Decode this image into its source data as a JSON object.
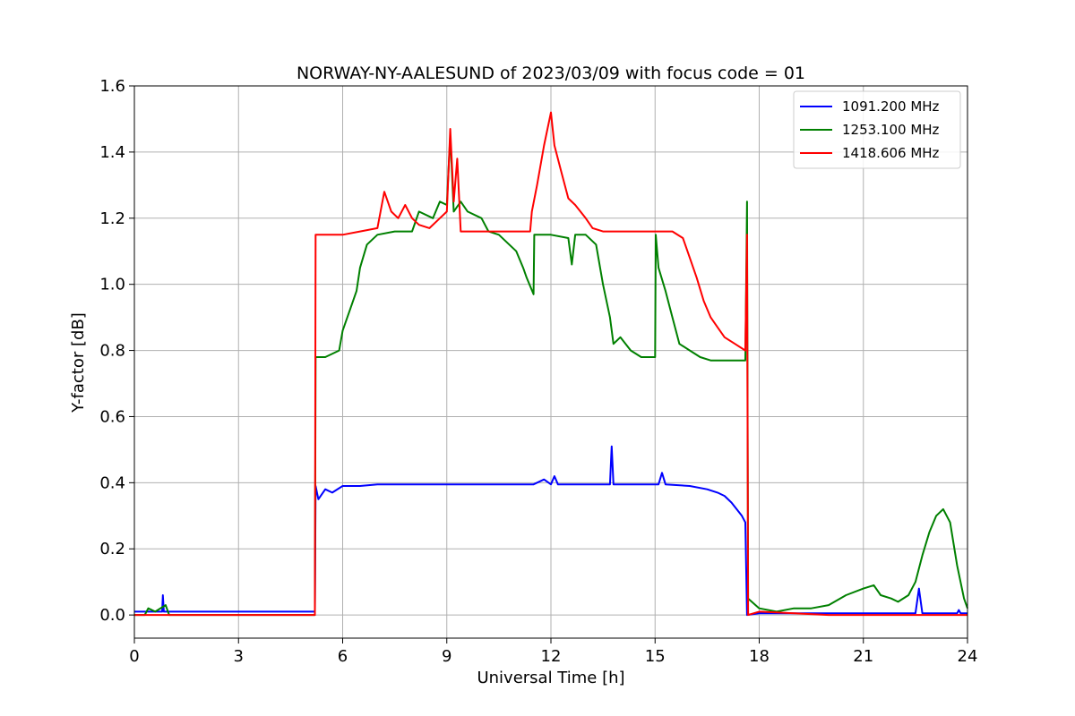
{
  "chart_data": {
    "type": "line",
    "title": "NORWAY-NY-AALESUND of 2023/03/09 with focus code = 01",
    "xlabel": "Universal Time [h]",
    "ylabel": "Y-factor [dB]",
    "xlim": [
      0,
      24
    ],
    "ylim": [
      -0.07,
      1.6
    ],
    "xticks": [
      0,
      3,
      6,
      9,
      12,
      15,
      18,
      21,
      24
    ],
    "yticks": [
      0.0,
      0.2,
      0.4,
      0.6,
      0.8,
      1.0,
      1.2,
      1.4,
      1.6
    ],
    "xtick_labels": [
      "0",
      "3",
      "6",
      "9",
      "12",
      "15",
      "18",
      "21",
      "24"
    ],
    "ytick_labels": [
      "0.0",
      "0.2",
      "0.4",
      "0.6",
      "0.8",
      "1.0",
      "1.2",
      "1.4",
      "1.6"
    ],
    "grid": true,
    "legend_position": "top-right",
    "series": [
      {
        "name": "1091.200 MHz",
        "color": "#0000ff",
        "points": [
          [
            0,
            0.01
          ],
          [
            0.8,
            0.01
          ],
          [
            0.82,
            0.06
          ],
          [
            0.85,
            0.01
          ],
          [
            5.2,
            0.01
          ],
          [
            5.22,
            0.39
          ],
          [
            5.3,
            0.35
          ],
          [
            5.5,
            0.38
          ],
          [
            5.7,
            0.37
          ],
          [
            6.0,
            0.39
          ],
          [
            6.5,
            0.39
          ],
          [
            7.0,
            0.395
          ],
          [
            9.0,
            0.395
          ],
          [
            11.5,
            0.395
          ],
          [
            11.8,
            0.41
          ],
          [
            12.0,
            0.395
          ],
          [
            12.1,
            0.42
          ],
          [
            12.2,
            0.395
          ],
          [
            13.7,
            0.395
          ],
          [
            13.75,
            0.51
          ],
          [
            13.8,
            0.395
          ],
          [
            15.1,
            0.395
          ],
          [
            15.2,
            0.43
          ],
          [
            15.3,
            0.395
          ],
          [
            16.0,
            0.39
          ],
          [
            16.5,
            0.38
          ],
          [
            16.8,
            0.37
          ],
          [
            17.0,
            0.36
          ],
          [
            17.2,
            0.34
          ],
          [
            17.35,
            0.32
          ],
          [
            17.5,
            0.3
          ],
          [
            17.6,
            0.28
          ],
          [
            17.65,
            0.0
          ],
          [
            18.0,
            0.005
          ],
          [
            19.0,
            0.005
          ],
          [
            20.0,
            0.005
          ],
          [
            22.5,
            0.005
          ],
          [
            22.6,
            0.08
          ],
          [
            22.7,
            0.005
          ],
          [
            23.7,
            0.005
          ],
          [
            23.75,
            0.015
          ],
          [
            23.8,
            0.005
          ],
          [
            24.0,
            0.005
          ]
        ]
      },
      {
        "name": "1253.100 MHz",
        "color": "#008000",
        "points": [
          [
            0,
            0.0
          ],
          [
            0.3,
            0.0
          ],
          [
            0.4,
            0.02
          ],
          [
            0.6,
            0.01
          ],
          [
            0.9,
            0.03
          ],
          [
            1.0,
            0.0
          ],
          [
            5.2,
            0.0
          ],
          [
            5.22,
            0.78
          ],
          [
            5.5,
            0.78
          ],
          [
            5.9,
            0.8
          ],
          [
            6.0,
            0.86
          ],
          [
            6.2,
            0.92
          ],
          [
            6.4,
            0.98
          ],
          [
            6.5,
            1.05
          ],
          [
            6.7,
            1.12
          ],
          [
            7.0,
            1.15
          ],
          [
            7.5,
            1.16
          ],
          [
            8.0,
            1.16
          ],
          [
            8.2,
            1.22
          ],
          [
            8.6,
            1.2
          ],
          [
            8.8,
            1.25
          ],
          [
            9.0,
            1.24
          ],
          [
            9.1,
            1.45
          ],
          [
            9.2,
            1.22
          ],
          [
            9.4,
            1.25
          ],
          [
            9.6,
            1.22
          ],
          [
            10.0,
            1.2
          ],
          [
            10.2,
            1.16
          ],
          [
            10.5,
            1.15
          ],
          [
            10.8,
            1.12
          ],
          [
            11.0,
            1.1
          ],
          [
            11.2,
            1.05
          ],
          [
            11.3,
            1.02
          ],
          [
            11.5,
            0.97
          ],
          [
            11.52,
            1.15
          ],
          [
            12.0,
            1.15
          ],
          [
            12.5,
            1.14
          ],
          [
            12.6,
            1.06
          ],
          [
            12.7,
            1.15
          ],
          [
            13.0,
            1.15
          ],
          [
            13.3,
            1.12
          ],
          [
            13.5,
            1.0
          ],
          [
            13.7,
            0.9
          ],
          [
            13.8,
            0.82
          ],
          [
            14.0,
            0.84
          ],
          [
            14.3,
            0.8
          ],
          [
            14.6,
            0.78
          ],
          [
            14.9,
            0.78
          ],
          [
            15.0,
            0.78
          ],
          [
            15.02,
            1.15
          ],
          [
            15.1,
            1.05
          ],
          [
            15.3,
            0.98
          ],
          [
            15.5,
            0.9
          ],
          [
            15.7,
            0.82
          ],
          [
            16.0,
            0.8
          ],
          [
            16.3,
            0.78
          ],
          [
            16.6,
            0.77
          ],
          [
            17.6,
            0.77
          ],
          [
            17.65,
            1.25
          ],
          [
            17.68,
            0.05
          ],
          [
            18.0,
            0.02
          ],
          [
            18.5,
            0.01
          ],
          [
            19.0,
            0.02
          ],
          [
            19.5,
            0.02
          ],
          [
            20.0,
            0.03
          ],
          [
            20.5,
            0.06
          ],
          [
            21.0,
            0.08
          ],
          [
            21.3,
            0.09
          ],
          [
            21.5,
            0.06
          ],
          [
            21.8,
            0.05
          ],
          [
            22.0,
            0.04
          ],
          [
            22.3,
            0.06
          ],
          [
            22.5,
            0.1
          ],
          [
            22.7,
            0.18
          ],
          [
            22.9,
            0.25
          ],
          [
            23.1,
            0.3
          ],
          [
            23.3,
            0.32
          ],
          [
            23.5,
            0.28
          ],
          [
            23.7,
            0.15
          ],
          [
            23.9,
            0.05
          ],
          [
            24.0,
            0.02
          ]
        ]
      },
      {
        "name": "1418.606 MHz",
        "color": "#ff0000",
        "points": [
          [
            0,
            0.0
          ],
          [
            5.2,
            0.0
          ],
          [
            5.22,
            1.15
          ],
          [
            5.5,
            1.15
          ],
          [
            6.0,
            1.15
          ],
          [
            6.5,
            1.16
          ],
          [
            7.0,
            1.17
          ],
          [
            7.2,
            1.28
          ],
          [
            7.4,
            1.22
          ],
          [
            7.6,
            1.2
          ],
          [
            7.8,
            1.24
          ],
          [
            8.0,
            1.2
          ],
          [
            8.2,
            1.18
          ],
          [
            8.5,
            1.17
          ],
          [
            8.8,
            1.2
          ],
          [
            9.0,
            1.22
          ],
          [
            9.1,
            1.47
          ],
          [
            9.2,
            1.25
          ],
          [
            9.3,
            1.38
          ],
          [
            9.4,
            1.16
          ],
          [
            10.0,
            1.16
          ],
          [
            11.0,
            1.16
          ],
          [
            11.4,
            1.16
          ],
          [
            11.45,
            1.22
          ],
          [
            11.6,
            1.3
          ],
          [
            11.8,
            1.42
          ],
          [
            12.0,
            1.52
          ],
          [
            12.1,
            1.42
          ],
          [
            12.3,
            1.34
          ],
          [
            12.5,
            1.26
          ],
          [
            12.7,
            1.24
          ],
          [
            13.0,
            1.2
          ],
          [
            13.2,
            1.17
          ],
          [
            13.5,
            1.16
          ],
          [
            14.0,
            1.16
          ],
          [
            15.0,
            1.16
          ],
          [
            15.5,
            1.16
          ],
          [
            15.8,
            1.14
          ],
          [
            16.0,
            1.08
          ],
          [
            16.2,
            1.02
          ],
          [
            16.4,
            0.95
          ],
          [
            16.6,
            0.9
          ],
          [
            16.8,
            0.87
          ],
          [
            17.0,
            0.84
          ],
          [
            17.3,
            0.82
          ],
          [
            17.6,
            0.8
          ],
          [
            17.65,
            1.15
          ],
          [
            17.68,
            0.0
          ],
          [
            18.0,
            0.01
          ],
          [
            20.0,
            0.0
          ],
          [
            24.0,
            0.0
          ]
        ]
      }
    ]
  }
}
